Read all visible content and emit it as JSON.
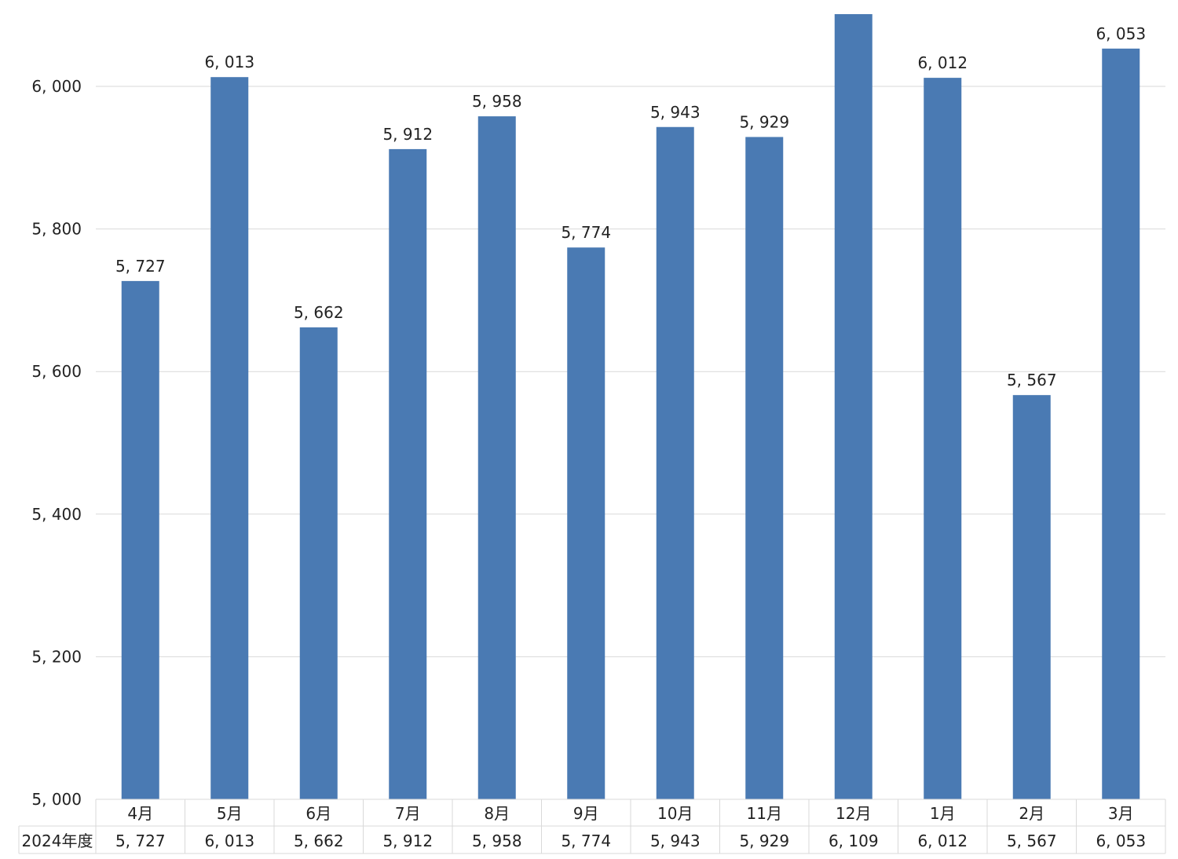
{
  "chart_data": {
    "type": "bar",
    "categories": [
      "4月",
      "5月",
      "6月",
      "7月",
      "8月",
      "9月",
      "10月",
      "11月",
      "12月",
      "1月",
      "2月",
      "3月"
    ],
    "series": [
      {
        "name": "2024年度",
        "values": [
          5727,
          6013,
          5662,
          5912,
          5958,
          5774,
          5943,
          5929,
          6109,
          6012,
          5567,
          6053
        ],
        "color": "#4a7ab3"
      }
    ],
    "value_labels": [
      "5, 727",
      "6, 013",
      "5, 662",
      "5, 912",
      "5, 958",
      "5, 774",
      "5, 943",
      "5, 929",
      "6, 109",
      "6, 012",
      "5, 567",
      "6, 053"
    ],
    "data_labels_shown": [
      true,
      true,
      true,
      true,
      true,
      true,
      true,
      true,
      false,
      true,
      true,
      true
    ],
    "ylim": [
      5000,
      6100
    ],
    "y_ticks": [
      5000,
      5200,
      5400,
      5600,
      5800,
      6000
    ],
    "y_tick_labels": [
      "5, 000",
      "5, 200",
      "5, 400",
      "5, 600",
      "5, 800",
      "6, 000"
    ],
    "grid": true,
    "data_table": true,
    "legend": "none",
    "gridline_color": "#d9d9d9",
    "table_border_color": "#d9d9d9"
  }
}
